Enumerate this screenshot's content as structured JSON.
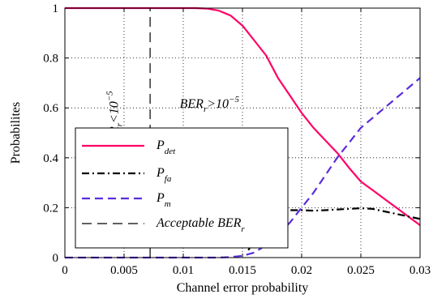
{
  "chart_data": {
    "type": "line",
    "title": "",
    "xlabel": "Channel error probability",
    "ylabel": "Probabilites",
    "xlim": [
      0,
      0.03
    ],
    "ylim": [
      0,
      1
    ],
    "x_ticks": [
      "0",
      "0.005",
      "0.01",
      "0.015",
      "0.02",
      "0.025",
      "0.03"
    ],
    "y_ticks": [
      "0",
      "0.2",
      "0.4",
      "0.6",
      "0.8",
      "1"
    ],
    "grid": "dotted",
    "legend_position": "lower-left",
    "series": [
      {
        "name": "P_det",
        "name_main": "P",
        "name_sub": "det",
        "color": "#ff0066",
        "dash": "solid",
        "x": [
          0,
          0.008,
          0.011,
          0.012,
          0.013,
          0.014,
          0.015,
          0.016,
          0.017,
          0.018,
          0.019,
          0.02,
          0.021,
          0.022,
          0.023,
          0.024,
          0.025,
          0.026,
          0.027,
          0.028,
          0.029,
          0.03
        ],
        "y": [
          1,
          1,
          1,
          0.998,
          0.99,
          0.97,
          0.93,
          0.87,
          0.81,
          0.72,
          0.65,
          0.58,
          0.52,
          0.47,
          0.42,
          0.36,
          0.305,
          0.27,
          0.235,
          0.2,
          0.165,
          0.13
        ]
      },
      {
        "name": "P_fa",
        "name_main": "P",
        "name_sub": "fa",
        "color": "#000000",
        "dash": "dashdot",
        "x": [
          0.0155,
          0.016,
          0.017,
          0.018,
          0.019,
          0.02,
          0.021,
          0.022,
          0.023,
          0.024,
          0.025,
          0.026,
          0.027,
          0.028,
          0.029,
          0.03
        ],
        "y": [
          0.03,
          0.07,
          0.15,
          0.18,
          0.19,
          0.19,
          0.188,
          0.19,
          0.193,
          0.195,
          0.198,
          0.195,
          0.185,
          0.175,
          0.165,
          0.155
        ]
      },
      {
        "name": "P_m",
        "name_main": "P",
        "name_sub": "m",
        "color": "#5a2ddc",
        "dash": "dashed",
        "x": [
          0,
          0.013,
          0.014,
          0.015,
          0.016,
          0.017,
          0.018,
          0.019,
          0.02,
          0.021,
          0.022,
          0.023,
          0.024,
          0.025,
          0.026,
          0.027,
          0.028,
          0.029,
          0.03
        ],
        "y": [
          0,
          0,
          0.002,
          0.007,
          0.02,
          0.05,
          0.09,
          0.14,
          0.2,
          0.26,
          0.33,
          0.4,
          0.46,
          0.52,
          0.56,
          0.6,
          0.64,
          0.68,
          0.72
        ]
      },
      {
        "name": "Acceptable BER_r",
        "name_main": "Acceptable BER",
        "name_sub": "r",
        "color": "#000000",
        "dash": "longdash",
        "x": [
          0.0072,
          0.0072
        ],
        "y": [
          0,
          1
        ]
      }
    ],
    "annotations": [
      {
        "main": "BER",
        "sub": "r",
        "rel": "<10",
        "exp": "−5",
        "x": 0.0045,
        "y": 0.43,
        "rotate": -90
      },
      {
        "main": "BER",
        "sub": "r",
        "rel": ">10",
        "exp": "−5",
        "x": 0.0097,
        "y": 0.6,
        "rotate": 0
      }
    ]
  }
}
